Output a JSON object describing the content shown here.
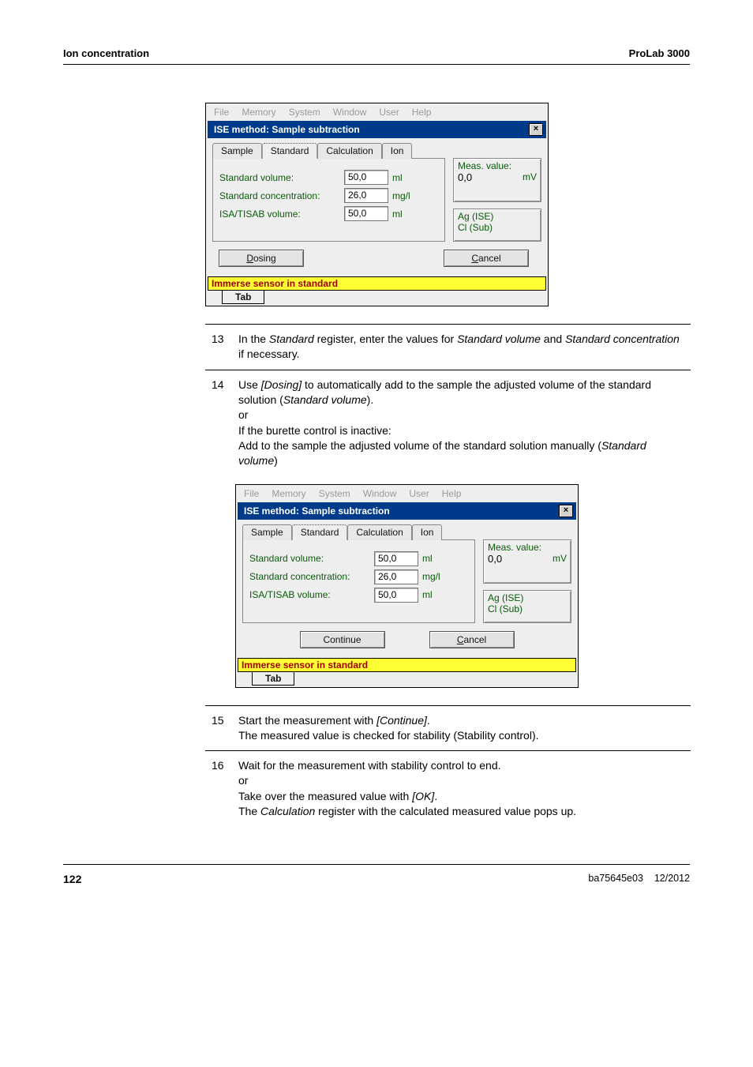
{
  "page": {
    "header_left": "Ion concentration",
    "header_right": "ProLab 3000",
    "footer_page": "122",
    "footer_doc": "ba75645e03",
    "footer_date": "12/2012"
  },
  "dialog": {
    "menus": [
      "File",
      "Memory",
      "System",
      "Window",
      "User",
      "Help"
    ],
    "title": "ISE method:  Sample subtraction",
    "close": "×",
    "tabs": {
      "sample": "Sample",
      "standard": "Standard",
      "calculation": "Calculation",
      "ion": "Ion"
    },
    "fields": {
      "std_vol_label": "Standard volume:",
      "std_vol_val": "50,0",
      "std_vol_unit": "ml",
      "std_conc_label": "Standard concentration:",
      "std_conc_val": "26,0",
      "std_conc_unit": "mg/l",
      "isa_label": "ISA/TISAB volume:",
      "isa_val": "50,0",
      "isa_unit": "ml"
    },
    "meas": {
      "label": "Meas. value:",
      "value": "0,0",
      "unit": "mV"
    },
    "sensors": {
      "line1": "Ag (ISE)",
      "line2": "Cl (Sub)"
    },
    "buttons": {
      "dosing": "Dosing",
      "continue": "Continue",
      "cancel": "Cancel"
    },
    "status": "Immerse sensor in standard",
    "tab_footer": "Tab"
  },
  "steps_a": [
    {
      "n": "13",
      "html": "In the <i>Standard</i> register, enter the values for <i>Standard volume</i> and <i>Standard concentration</i> if necessary."
    },
    {
      "n": "14",
      "html": "Use <i>[Dosing]</i> to automatically add to the sample the adjusted volume of the standard solution (<i>Standard volume</i>).<br>or<br>If the burette control is inactive:<br>Add to the sample the adjusted volume of the standard solution manually (<i>Standard volume</i>)"
    }
  ],
  "steps_b": [
    {
      "n": "15",
      "html": "Start the measurement with <i>[Continue]</i>.<br>The measured value is checked for stability (Stability control)."
    },
    {
      "n": "16",
      "html": "Wait for the measurement with stability control to end.<br>or<br>Take over the measured value with <i>[OK]</i>.<br>The <i>Calculation</i> register with the calculated measured value pops up."
    }
  ],
  "colors": {
    "title_bg": "#003a8a",
    "field_text": "#0a5a0a",
    "status_bg": "#ffff33",
    "status_text": "#a00000",
    "menu_disabled": "#9a9a9a"
  }
}
